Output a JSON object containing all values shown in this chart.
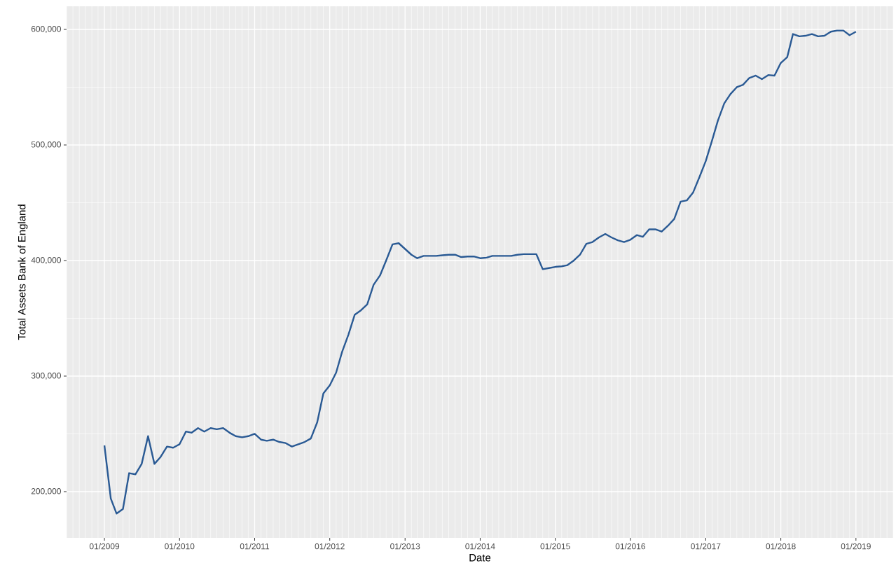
{
  "chart_data": {
    "type": "line",
    "xlabel": "Date",
    "ylabel": "Total Assets Bank of England",
    "x": [
      "2009-01",
      "2009-02",
      "2009-03",
      "2009-04",
      "2009-05",
      "2009-06",
      "2009-07",
      "2009-08",
      "2009-09",
      "2009-10",
      "2009-11",
      "2009-12",
      "2010-01",
      "2010-02",
      "2010-03",
      "2010-04",
      "2010-05",
      "2010-06",
      "2010-07",
      "2010-08",
      "2010-09",
      "2010-10",
      "2010-11",
      "2010-12",
      "2011-01",
      "2011-02",
      "2011-03",
      "2011-04",
      "2011-05",
      "2011-06",
      "2011-07",
      "2011-08",
      "2011-09",
      "2011-10",
      "2011-11",
      "2011-12",
      "2012-01",
      "2012-02",
      "2012-03",
      "2012-04",
      "2012-05",
      "2012-06",
      "2012-07",
      "2012-08",
      "2012-09",
      "2012-10",
      "2012-11",
      "2012-12",
      "2013-01",
      "2013-02",
      "2013-03",
      "2013-04",
      "2013-05",
      "2013-06",
      "2013-07",
      "2013-08",
      "2013-09",
      "2013-10",
      "2013-11",
      "2013-12",
      "2014-01",
      "2014-02",
      "2014-03",
      "2014-04",
      "2014-05",
      "2014-06",
      "2014-07",
      "2014-08",
      "2014-09",
      "2014-10",
      "2014-11",
      "2014-12",
      "2015-01",
      "2015-02",
      "2015-03",
      "2015-04",
      "2015-05",
      "2015-06",
      "2015-07",
      "2015-08",
      "2015-09",
      "2015-10",
      "2015-11",
      "2015-12",
      "2016-01",
      "2016-02",
      "2016-03",
      "2016-04",
      "2016-05",
      "2016-06",
      "2016-07",
      "2016-08",
      "2016-09",
      "2016-10",
      "2016-11",
      "2016-12",
      "2017-01",
      "2017-02",
      "2017-03",
      "2017-04",
      "2017-05",
      "2017-06",
      "2017-07",
      "2017-08",
      "2017-09",
      "2017-10",
      "2017-11",
      "2017-12",
      "2018-01",
      "2018-02",
      "2018-03",
      "2018-04",
      "2018-05",
      "2018-06",
      "2018-07",
      "2018-08",
      "2018-09",
      "2018-10",
      "2018-11",
      "2018-12",
      "2019-01"
    ],
    "series": [
      {
        "color": "#2a5a94",
        "values": [
          240000,
          194000,
          181000,
          185000,
          216000,
          215000,
          224000,
          248000,
          224000,
          230000,
          239000,
          238000,
          241000,
          252000,
          251000,
          255000,
          252000,
          255000,
          254000,
          255000,
          251000,
          248000,
          247000,
          248000,
          250000,
          245000,
          244000,
          245000,
          243000,
          242000,
          239000,
          241000,
          243000,
          246000,
          260000,
          285000,
          292000,
          303000,
          321000,
          336000,
          353000,
          357000,
          362000,
          379000,
          387000,
          400000,
          414000,
          415000,
          410000,
          405000,
          402000,
          404000,
          404000,
          404000,
          404500,
          405000,
          405000,
          403000,
          403500,
          403500,
          402000,
          402500,
          404000,
          404000,
          404000,
          404000,
          405000,
          405500,
          405500,
          405500,
          392500,
          393500,
          394500,
          395000,
          396000,
          400000,
          405000,
          414500,
          416000,
          420000,
          423000,
          420000,
          417500,
          416000,
          418000,
          422000,
          420500,
          427000,
          427000,
          425000,
          430000,
          436000,
          451000,
          452000,
          459000,
          472000,
          486000,
          504000,
          521000,
          536000,
          544000,
          550000,
          552000,
          558000,
          560000,
          557000,
          560500,
          560000,
          571000,
          576000,
          596000,
          594000,
          594500,
          596000,
          594000,
          594500,
          598000,
          599000,
          599000,
          595000,
          598000
        ]
      }
    ],
    "xlim": [
      "2008-07",
      "2019-07"
    ],
    "xticks": [
      {
        "value": "2009-01",
        "label": "01/2009"
      },
      {
        "value": "2010-01",
        "label": "01/2010"
      },
      {
        "value": "2011-01",
        "label": "01/2011"
      },
      {
        "value": "2012-01",
        "label": "01/2012"
      },
      {
        "value": "2013-01",
        "label": "01/2013"
      },
      {
        "value": "2014-01",
        "label": "01/2014"
      },
      {
        "value": "2015-01",
        "label": "01/2015"
      },
      {
        "value": "2016-01",
        "label": "01/2016"
      },
      {
        "value": "2017-01",
        "label": "01/2017"
      },
      {
        "value": "2018-01",
        "label": "01/2018"
      },
      {
        "value": "2019-01",
        "label": "01/2019"
      }
    ],
    "ylim": [
      160000,
      620000
    ],
    "yticks": [
      {
        "value": 200000,
        "label": "200,000"
      },
      {
        "value": 300000,
        "label": "300,000"
      },
      {
        "value": 400000,
        "label": "400,000"
      },
      {
        "value": 500000,
        "label": "500,000"
      },
      {
        "value": 600000,
        "label": "600,000"
      }
    ],
    "grid": true,
    "marker": "none",
    "line_style": "solid"
  }
}
